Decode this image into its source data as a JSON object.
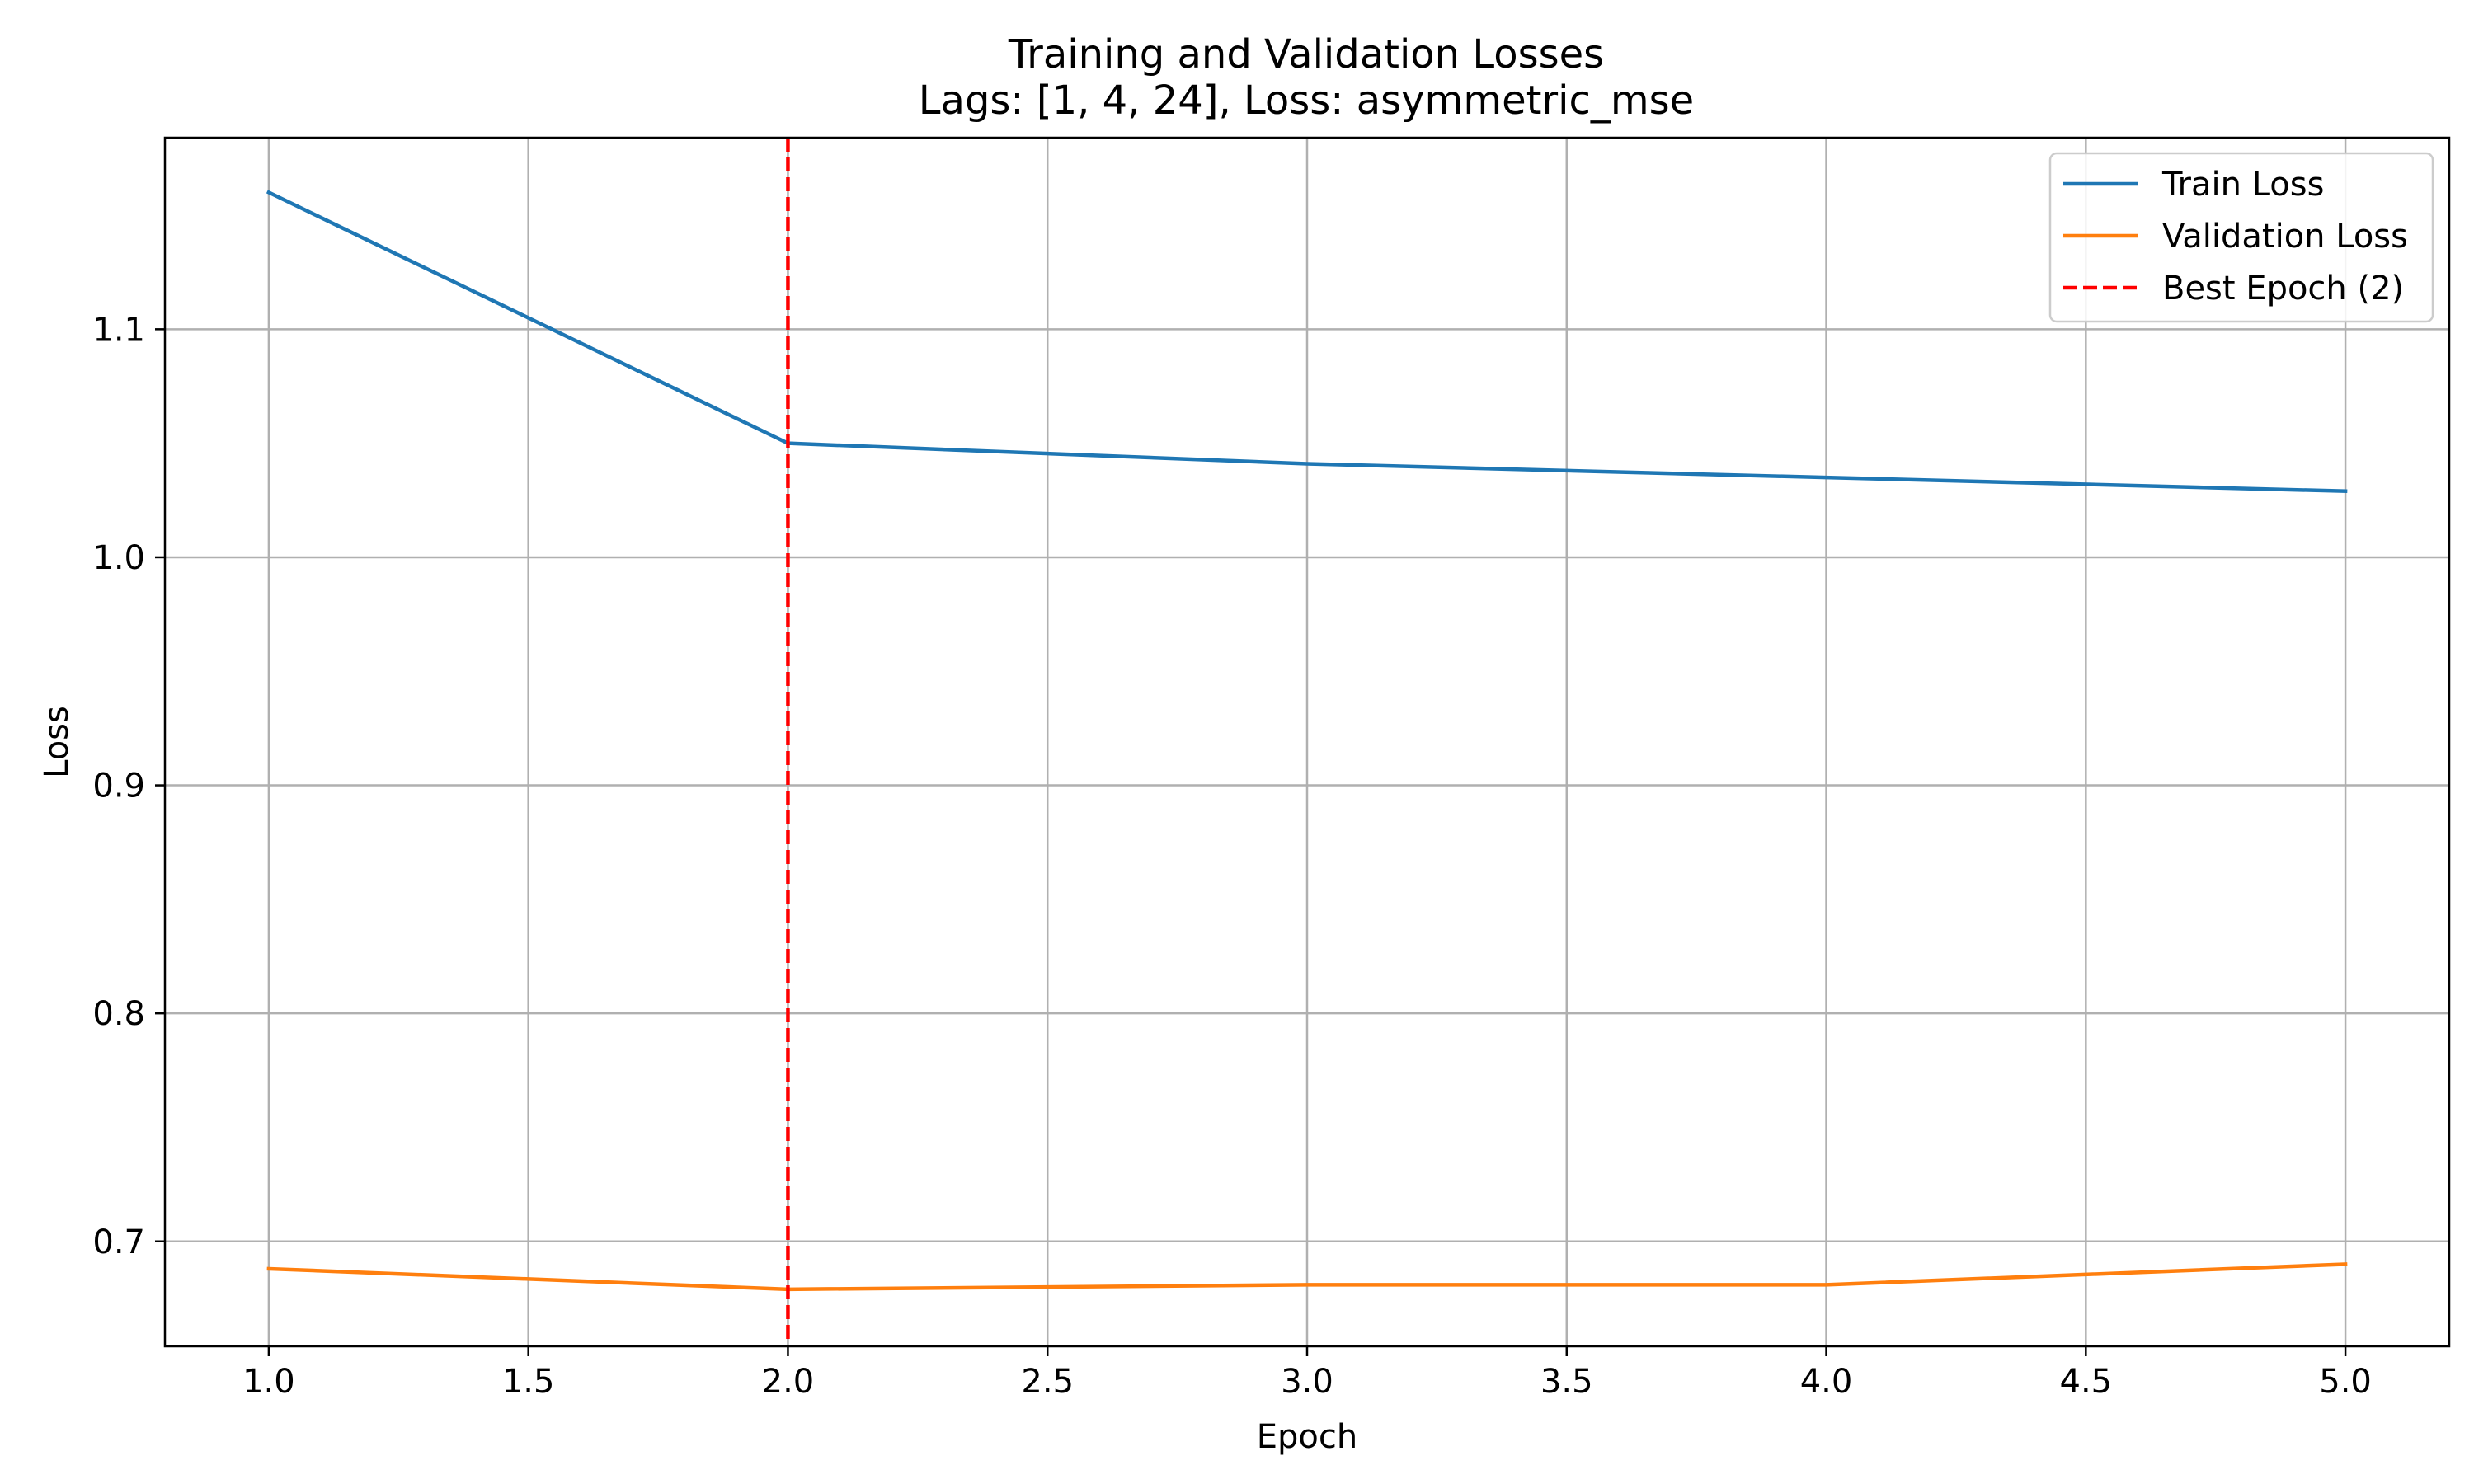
{
  "chart_data": {
    "type": "line",
    "title": "Training and Validation Losses",
    "subtitle": "Lags: [1, 4, 24], Loss: asymmetric_mse",
    "xlabel": "Epoch",
    "ylabel": "Loss",
    "xlim": [
      0.8,
      5.2
    ],
    "ylim": [
      0.654,
      1.184
    ],
    "x_ticks": [
      "1.0",
      "1.5",
      "2.0",
      "2.5",
      "3.0",
      "3.5",
      "4.0",
      "4.5",
      "5.0"
    ],
    "y_ticks": [
      "0.7",
      "0.8",
      "0.9",
      "1.0",
      "1.1"
    ],
    "grid": true,
    "legend_position": "top-right",
    "x": [
      1,
      2,
      3,
      4,
      5
    ],
    "series": [
      {
        "name": "Train Loss",
        "color": "#1f77b4",
        "style": "solid",
        "values": [
          1.16,
          1.05,
          1.041,
          1.035,
          1.029
        ]
      },
      {
        "name": "Validation Loss",
        "color": "#ff7f0e",
        "style": "solid",
        "values": [
          0.688,
          0.679,
          0.681,
          0.681,
          0.69
        ]
      }
    ],
    "reference_lines": [
      {
        "name": "Best Epoch (2)",
        "orientation": "vertical",
        "x": 2,
        "color": "#ff0000",
        "style": "dashed"
      }
    ]
  }
}
